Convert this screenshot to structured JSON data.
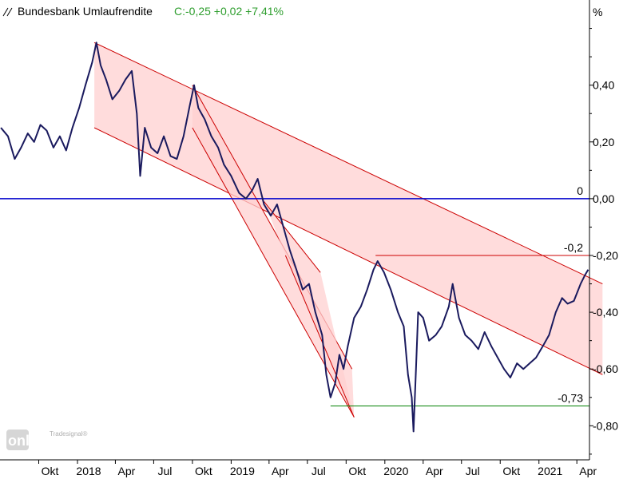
{
  "header": {
    "title": "Bundesbank Umlaufrendite",
    "quote": "C:-0,25 +0,02 +7,41%",
    "unit": "%"
  },
  "watermark": {
    "brand": "Tradesignal®",
    "product": "online"
  },
  "colors": {
    "price_line": "#1a1a5e",
    "zero_line": "#0000cc",
    "channel_line": "#cc0000",
    "channel_fill": "#ffd0d0",
    "level_red": "#cc0000",
    "level_green": "#008000",
    "quote_green": "#2e9e2e"
  },
  "chart_data": {
    "type": "line",
    "x_start": "2017-07",
    "x_end": "2021-05",
    "ylim": [
      -0.92,
      0.7
    ],
    "y_ticks": [
      0.4,
      0.2,
      0.0,
      -0.2,
      -0.4,
      -0.6,
      -0.8
    ],
    "y_tick_labels": [
      "0,40",
      "0,20",
      "0,00",
      "-0,20",
      "-0,40",
      "-0,60",
      "-0,80"
    ],
    "x_ticks": [
      {
        "t": "2017-10-01",
        "label": "Okt"
      },
      {
        "t": "2018-01-01",
        "label": "2018"
      },
      {
        "t": "2018-04-01",
        "label": "Apr"
      },
      {
        "t": "2018-07-01",
        "label": "Jul"
      },
      {
        "t": "2018-10-01",
        "label": "Okt"
      },
      {
        "t": "2019-01-01",
        "label": "2019"
      },
      {
        "t": "2019-04-01",
        "label": "Apr"
      },
      {
        "t": "2019-07-01",
        "label": "Jul"
      },
      {
        "t": "2019-10-01",
        "label": "Okt"
      },
      {
        "t": "2020-01-01",
        "label": "2020"
      },
      {
        "t": "2020-04-01",
        "label": "Apr"
      },
      {
        "t": "2020-07-01",
        "label": "Jul"
      },
      {
        "t": "2020-10-01",
        "label": "Okt"
      },
      {
        "t": "2021-01-01",
        "label": "2021"
      },
      {
        "t": "2021-04-01",
        "label": "Apr"
      }
    ],
    "series": [
      {
        "values": [
          [
            "2017-07-03",
            0.25
          ],
          [
            "2017-07-20",
            0.22
          ],
          [
            "2017-08-05",
            0.14
          ],
          [
            "2017-08-20",
            0.18
          ],
          [
            "2017-09-05",
            0.23
          ],
          [
            "2017-09-20",
            0.2
          ],
          [
            "2017-10-05",
            0.26
          ],
          [
            "2017-10-20",
            0.24
          ],
          [
            "2017-11-05",
            0.18
          ],
          [
            "2017-11-20",
            0.22
          ],
          [
            "2017-12-05",
            0.17
          ],
          [
            "2017-12-20",
            0.25
          ],
          [
            "2018-01-05",
            0.32
          ],
          [
            "2018-01-20",
            0.4
          ],
          [
            "2018-02-05",
            0.48
          ],
          [
            "2018-02-15",
            0.55
          ],
          [
            "2018-02-25",
            0.47
          ],
          [
            "2018-03-10",
            0.42
          ],
          [
            "2018-03-25",
            0.35
          ],
          [
            "2018-04-10",
            0.38
          ],
          [
            "2018-04-25",
            0.42
          ],
          [
            "2018-05-10",
            0.45
          ],
          [
            "2018-05-22",
            0.3
          ],
          [
            "2018-05-30",
            0.08
          ],
          [
            "2018-06-10",
            0.25
          ],
          [
            "2018-06-25",
            0.18
          ],
          [
            "2018-07-10",
            0.16
          ],
          [
            "2018-07-25",
            0.22
          ],
          [
            "2018-08-10",
            0.15
          ],
          [
            "2018-08-25",
            0.14
          ],
          [
            "2018-09-10",
            0.22
          ],
          [
            "2018-09-25",
            0.33
          ],
          [
            "2018-10-05",
            0.4
          ],
          [
            "2018-10-15",
            0.32
          ],
          [
            "2018-10-30",
            0.28
          ],
          [
            "2018-11-15",
            0.22
          ],
          [
            "2018-12-01",
            0.18
          ],
          [
            "2018-12-15",
            0.12
          ],
          [
            "2019-01-01",
            0.08
          ],
          [
            "2019-01-20",
            0.02
          ],
          [
            "2019-02-05",
            0.0
          ],
          [
            "2019-02-20",
            0.03
          ],
          [
            "2019-03-05",
            0.07
          ],
          [
            "2019-03-20",
            -0.02
          ],
          [
            "2019-04-05",
            -0.06
          ],
          [
            "2019-04-20",
            -0.02
          ],
          [
            "2019-05-05",
            -0.1
          ],
          [
            "2019-05-20",
            -0.18
          ],
          [
            "2019-06-05",
            -0.25
          ],
          [
            "2019-06-20",
            -0.32
          ],
          [
            "2019-07-05",
            -0.3
          ],
          [
            "2019-07-20",
            -0.4
          ],
          [
            "2019-08-05",
            -0.48
          ],
          [
            "2019-08-15",
            -0.62
          ],
          [
            "2019-08-25",
            -0.7
          ],
          [
            "2019-09-05",
            -0.65
          ],
          [
            "2019-09-15",
            -0.55
          ],
          [
            "2019-09-25",
            -0.6
          ],
          [
            "2019-10-05",
            -0.52
          ],
          [
            "2019-10-20",
            -0.42
          ],
          [
            "2019-11-05",
            -0.38
          ],
          [
            "2019-11-20",
            -0.32
          ],
          [
            "2019-12-05",
            -0.25
          ],
          [
            "2019-12-15",
            -0.22
          ],
          [
            "2019-12-30",
            -0.26
          ],
          [
            "2020-01-15",
            -0.32
          ],
          [
            "2020-02-01",
            -0.4
          ],
          [
            "2020-02-15",
            -0.45
          ],
          [
            "2020-02-25",
            -0.62
          ],
          [
            "2020-03-05",
            -0.7
          ],
          [
            "2020-03-09",
            -0.82
          ],
          [
            "2020-03-15",
            -0.6
          ],
          [
            "2020-03-20",
            -0.4
          ],
          [
            "2020-04-01",
            -0.42
          ],
          [
            "2020-04-15",
            -0.5
          ],
          [
            "2020-05-01",
            -0.48
          ],
          [
            "2020-05-15",
            -0.45
          ],
          [
            "2020-06-01",
            -0.38
          ],
          [
            "2020-06-10",
            -0.3
          ],
          [
            "2020-06-25",
            -0.42
          ],
          [
            "2020-07-10",
            -0.48
          ],
          [
            "2020-07-25",
            -0.5
          ],
          [
            "2020-08-10",
            -0.53
          ],
          [
            "2020-08-25",
            -0.47
          ],
          [
            "2020-09-10",
            -0.52
          ],
          [
            "2020-09-25",
            -0.56
          ],
          [
            "2020-10-10",
            -0.6
          ],
          [
            "2020-10-25",
            -0.63
          ],
          [
            "2020-11-10",
            -0.58
          ],
          [
            "2020-11-25",
            -0.6
          ],
          [
            "2020-12-10",
            -0.58
          ],
          [
            "2020-12-25",
            -0.56
          ],
          [
            "2021-01-10",
            -0.52
          ],
          [
            "2021-01-25",
            -0.48
          ],
          [
            "2021-02-10",
            -0.4
          ],
          [
            "2021-02-25",
            -0.35
          ],
          [
            "2021-03-10",
            -0.37
          ],
          [
            "2021-03-25",
            -0.36
          ],
          [
            "2021-04-10",
            -0.3
          ],
          [
            "2021-04-20",
            -0.27
          ],
          [
            "2021-04-28",
            -0.25
          ]
        ]
      }
    ],
    "trend_channels": [
      {
        "p1": [
          "2018-02-10",
          0.55
        ],
        "p2": [
          "2021-06-01",
          -0.3
        ],
        "p3": [
          "2018-02-10",
          0.25
        ],
        "p4": [
          "2021-06-01",
          -0.62
        ]
      },
      {
        "p1": [
          "2018-10-01",
          0.4
        ],
        "p2": [
          "2019-10-15",
          -0.6
        ],
        "p3": [
          "2018-10-01",
          0.25
        ],
        "p4": [
          "2019-10-20",
          -0.77
        ]
      },
      {
        "p1": [
          "2019-03-20",
          -0.01
        ],
        "p2": [
          "2019-08-01",
          -0.26
        ],
        "p3": [
          "2019-05-10",
          -0.2
        ],
        "p4": [
          "2019-10-20",
          -0.77
        ]
      }
    ],
    "horizontal_levels": [
      {
        "y": 0.0,
        "label": "0",
        "from": "2017-07-01",
        "color": "#0000cc"
      },
      {
        "y": -0.2,
        "label": "-0,2",
        "from": "2019-12-10",
        "color": "#cc0000"
      },
      {
        "y": -0.73,
        "label": "-0,73",
        "from": "2019-08-25",
        "color": "#008000"
      }
    ]
  }
}
